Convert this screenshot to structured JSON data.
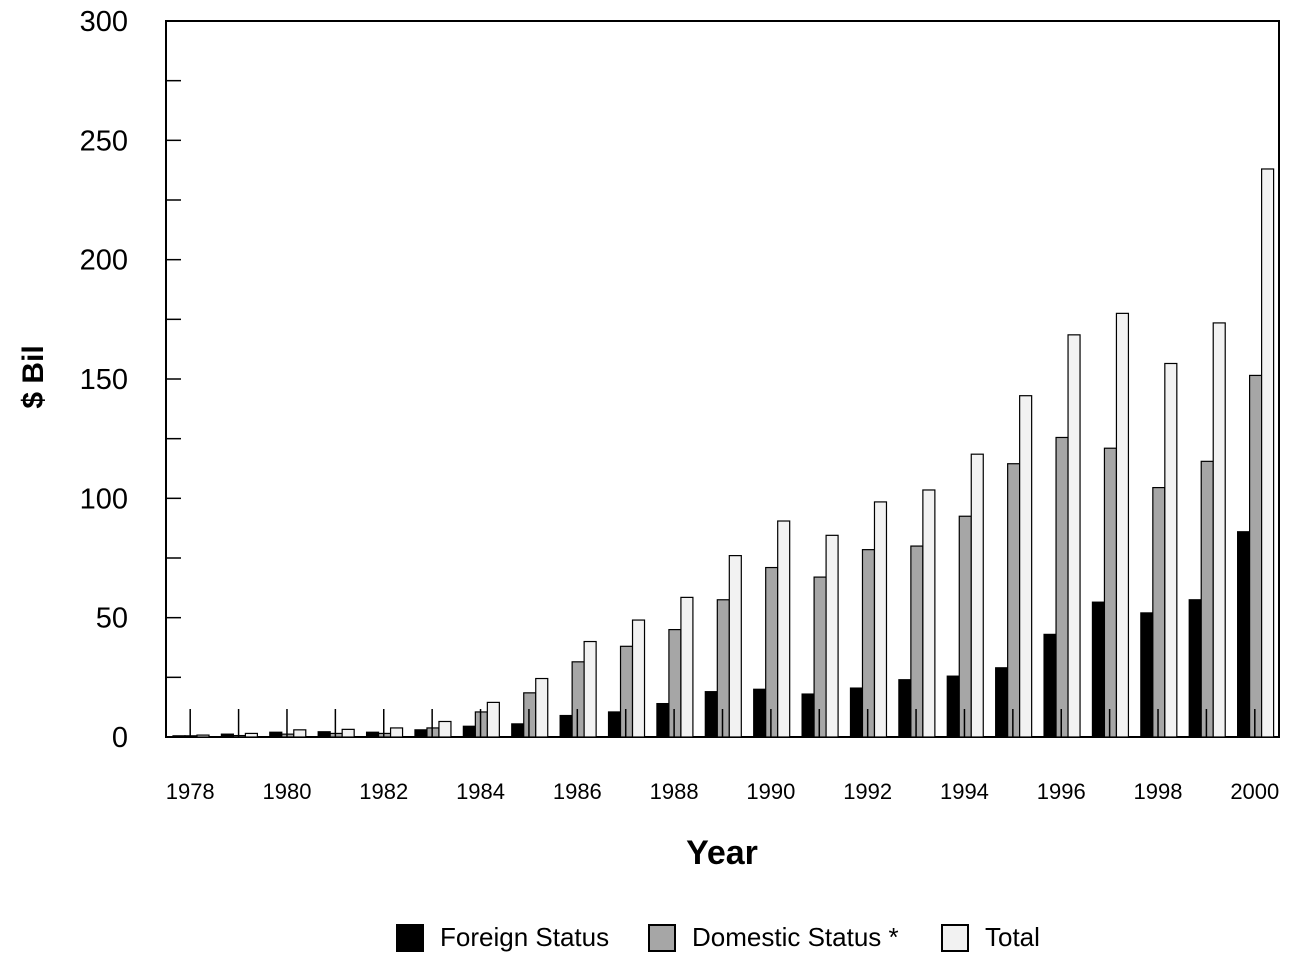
{
  "chart_data": {
    "type": "bar",
    "title": "",
    "xlabel": "Year",
    "ylabel": "$ Bil",
    "ylim": [
      0,
      300
    ],
    "yticks": [
      "0",
      "50",
      "100",
      "150",
      "200",
      "250",
      "300"
    ],
    "x_tick_labels": [
      "1978",
      "1980",
      "1982",
      "1984",
      "1986",
      "1988",
      "1990",
      "1992",
      "1994",
      "1996",
      "1998",
      "2000"
    ],
    "categories": [
      "1978",
      "1979",
      "1980",
      "1981",
      "1982",
      "1983",
      "1984",
      "1985",
      "1986",
      "1987",
      "1988",
      "1989",
      "1990",
      "1991",
      "1992",
      "1993",
      "1994",
      "1995",
      "1996",
      "1997",
      "1998",
      "1999",
      "2000"
    ],
    "series": [
      {
        "name": "Foreign Status",
        "color": "#000000",
        "values": [
          0.5,
          1.2,
          2.0,
          2.2,
          2.0,
          3.0,
          4.5,
          5.5,
          9.0,
          10.5,
          14.0,
          19.0,
          20.0,
          18.0,
          20.5,
          24.0,
          25.5,
          29.0,
          43.0,
          56.5,
          52.0,
          57.5,
          86.0
        ]
      },
      {
        "name": "Domestic Status *",
        "color": "#a6a6a6",
        "values": [
          0.5,
          0.6,
          1.2,
          1.5,
          1.5,
          3.8,
          10.5,
          18.5,
          31.5,
          38.0,
          45.0,
          57.5,
          71.0,
          67.0,
          78.5,
          80.0,
          92.5,
          114.5,
          125.5,
          121.0,
          104.5,
          115.5,
          151.5
        ]
      },
      {
        "name": "Total",
        "color": "#f2f2f2",
        "values": [
          0.8,
          1.5,
          3.0,
          3.2,
          3.8,
          6.5,
          14.5,
          24.5,
          40.0,
          49.0,
          58.5,
          76.0,
          90.5,
          84.5,
          98.5,
          103.5,
          118.5,
          143.0,
          168.5,
          177.5,
          156.5,
          173.5,
          238.0
        ]
      }
    ],
    "grid": false,
    "legend": "bottom"
  }
}
